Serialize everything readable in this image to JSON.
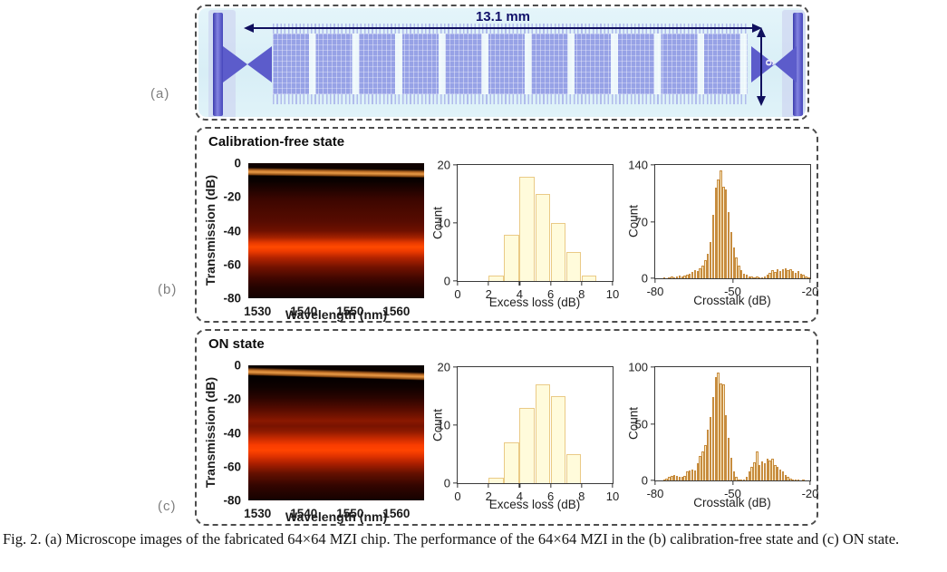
{
  "figure": {
    "caption": "Fig. 2. (a) Microscope images of the fabricated 64×64 MZI chip. The performance of the 64×64 MZI in the (b) calibration-free state and (c) ON state.",
    "panel_labels": {
      "a": "(a)",
      "b": "(b)",
      "c": "(c)"
    }
  },
  "chip": {
    "length_label": "13.1 mm",
    "height_label": "6"
  },
  "panels": {
    "b": {
      "title": "Calibration-free state"
    },
    "c": {
      "title": "ON state"
    }
  },
  "colors": {
    "excess_bar_fill": "#fffbdb",
    "excess_bar_border": "#eaca86",
    "crosstalk_bar_fill": "#fbeecd",
    "crosstalk_bar_border": "#c78c3e",
    "dimension_arrow": "#10105e",
    "chip_block": "#97a2e6",
    "spectrum_hot_band": "#ff4400"
  },
  "chart_data": [
    {
      "id": "spec-b",
      "type": "heatmap",
      "panel": "b",
      "xlabel": "Wavelength (nm)",
      "ylabel": "Transmission (dB)",
      "xlim": [
        1528,
        1566
      ],
      "ylim": [
        -80,
        0
      ],
      "xticks": [
        1530,
        1540,
        1550,
        1560
      ],
      "yticks": [
        0,
        -20,
        -40,
        -60,
        -80
      ],
      "features": {
        "bright_line_db": -5,
        "bright_band_db": [
          -45,
          -55
        ]
      }
    },
    {
      "id": "hist-b-excess",
      "type": "bar",
      "panel": "b",
      "xlabel": "Excess loss (dB)",
      "ylabel": "Count",
      "xlim": [
        0,
        10
      ],
      "ylim": [
        0,
        20
      ],
      "xticks": [
        0,
        2,
        4,
        6,
        8,
        10
      ],
      "yticks": [
        0,
        10,
        20
      ],
      "bin_start": 2,
      "bin_width": 1,
      "values": [
        1,
        8,
        18,
        15,
        10,
        5,
        1
      ]
    },
    {
      "id": "hist-b-cross",
      "type": "bar",
      "panel": "b",
      "xlabel": "Crosstalk (dB)",
      "ylabel": "Count",
      "xlim": [
        -80,
        -20
      ],
      "ylim": [
        0,
        140
      ],
      "xticks": [
        -80,
        -50,
        -20
      ],
      "yticks": [
        0,
        70,
        140
      ],
      "bin_start": -77,
      "bin_width": 1,
      "values": [
        1,
        0,
        1,
        2,
        1,
        2,
        3,
        2,
        3,
        4,
        6,
        8,
        10,
        9,
        12,
        16,
        22,
        30,
        45,
        78,
        112,
        122,
        133,
        113,
        110,
        82,
        57,
        38,
        26,
        16,
        10,
        6,
        4,
        2,
        2,
        1,
        2,
        1,
        1,
        2,
        4,
        7,
        10,
        8,
        11,
        9,
        11,
        12,
        10,
        11,
        9,
        7,
        9,
        6,
        4,
        2,
        1
      ]
    },
    {
      "id": "spec-c",
      "type": "heatmap",
      "panel": "c",
      "xlabel": "Wavelength (nm)",
      "ylabel": "Transmission (dB)",
      "xlim": [
        1528,
        1566
      ],
      "ylim": [
        -80,
        0
      ],
      "xticks": [
        1530,
        1540,
        1550,
        1560
      ],
      "yticks": [
        0,
        -20,
        -40,
        -60,
        -80
      ],
      "features": {
        "bright_line_db": -6,
        "mid_band_db": [
          -33,
          -45
        ],
        "bright_band_db": [
          -45,
          -55
        ]
      }
    },
    {
      "id": "hist-c-excess",
      "type": "bar",
      "panel": "c",
      "xlabel": "Excess loss (dB)",
      "ylabel": "Count",
      "xlim": [
        0,
        10
      ],
      "ylim": [
        0,
        20
      ],
      "xticks": [
        0,
        2,
        4,
        6,
        8,
        10
      ],
      "yticks": [
        0,
        10,
        20
      ],
      "bin_start": 2,
      "bin_width": 1,
      "values": [
        1,
        7,
        13,
        17,
        15,
        5
      ]
    },
    {
      "id": "hist-c-cross",
      "type": "bar",
      "panel": "c",
      "xlabel": "Crosstalk (dB)",
      "ylabel": "Count",
      "xlim": [
        -80,
        -20
      ],
      "ylim": [
        0,
        100
      ],
      "xticks": [
        -80,
        -50,
        -20
      ],
      "yticks": [
        0,
        50,
        100
      ],
      "bin_start": -77,
      "bin_width": 1,
      "values": [
        1,
        2,
        3,
        4,
        5,
        4,
        3,
        3,
        4,
        8,
        9,
        10,
        9,
        15,
        22,
        26,
        31,
        45,
        56,
        74,
        91,
        95,
        86,
        85,
        58,
        38,
        20,
        8,
        3,
        1,
        1,
        1,
        3,
        8,
        12,
        16,
        26,
        14,
        17,
        15,
        19,
        18,
        19,
        14,
        12,
        10,
        8,
        5,
        3,
        2,
        1,
        1,
        1,
        0,
        1
      ]
    }
  ]
}
